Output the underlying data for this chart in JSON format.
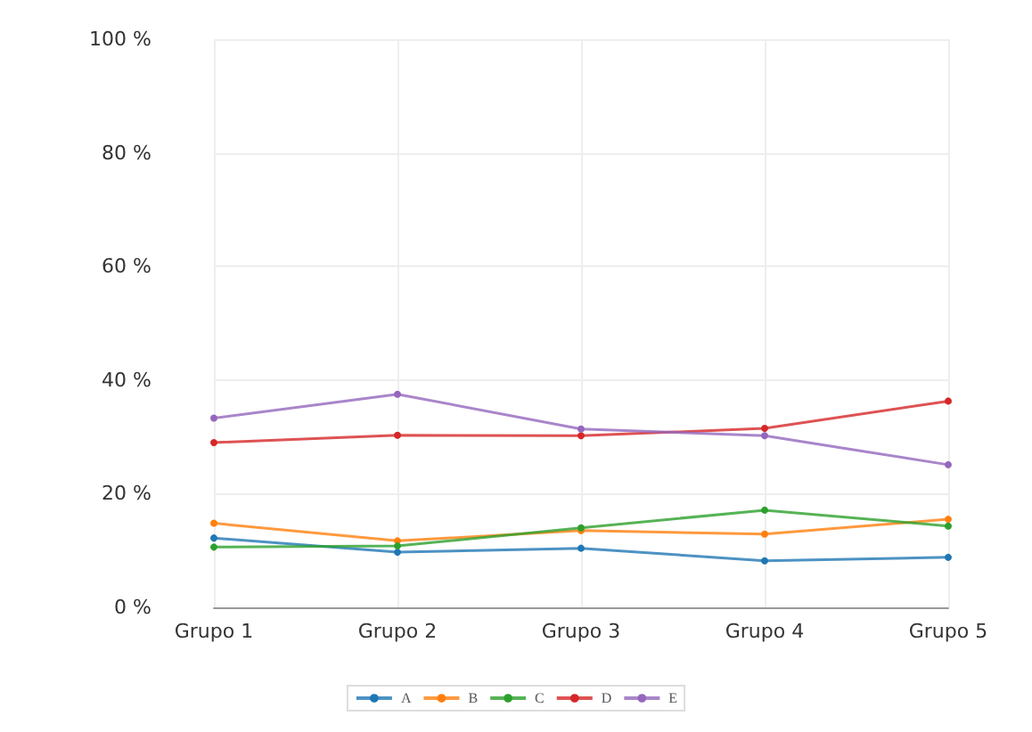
{
  "chart_data": {
    "type": "line",
    "categories": [
      "Grupo 1",
      "Grupo 2",
      "Grupo 3",
      "Grupo 4",
      "Grupo 5"
    ],
    "series": [
      {
        "name": "A",
        "color": "#1f77b4",
        "values": [
          12.2,
          9.7,
          10.4,
          8.2,
          8.8
        ]
      },
      {
        "name": "B",
        "color": "#ff7f0e",
        "values": [
          14.8,
          11.7,
          13.5,
          12.9,
          15.5
        ]
      },
      {
        "name": "C",
        "color": "#2ca02c",
        "values": [
          10.6,
          10.8,
          14.0,
          17.1,
          14.3
        ]
      },
      {
        "name": "D",
        "color": "#d62728",
        "values": [
          29.0,
          30.3,
          30.2,
          31.5,
          36.3
        ]
      },
      {
        "name": "E",
        "color": "#9467bd",
        "values": [
          33.3,
          37.5,
          31.4,
          30.2,
          25.1
        ]
      }
    ],
    "ylim": [
      0,
      100
    ],
    "yticks": [
      {
        "value": 0,
        "label": "0 %"
      },
      {
        "value": 20,
        "label": "20 %"
      },
      {
        "value": 40,
        "label": "40 %"
      },
      {
        "value": 60,
        "label": "60 %"
      },
      {
        "value": 80,
        "label": "80 %"
      },
      {
        "value": 100,
        "label": "100 %"
      }
    ],
    "grid": true,
    "legend": "bottom",
    "marker": "circle",
    "line_style": "solid"
  }
}
